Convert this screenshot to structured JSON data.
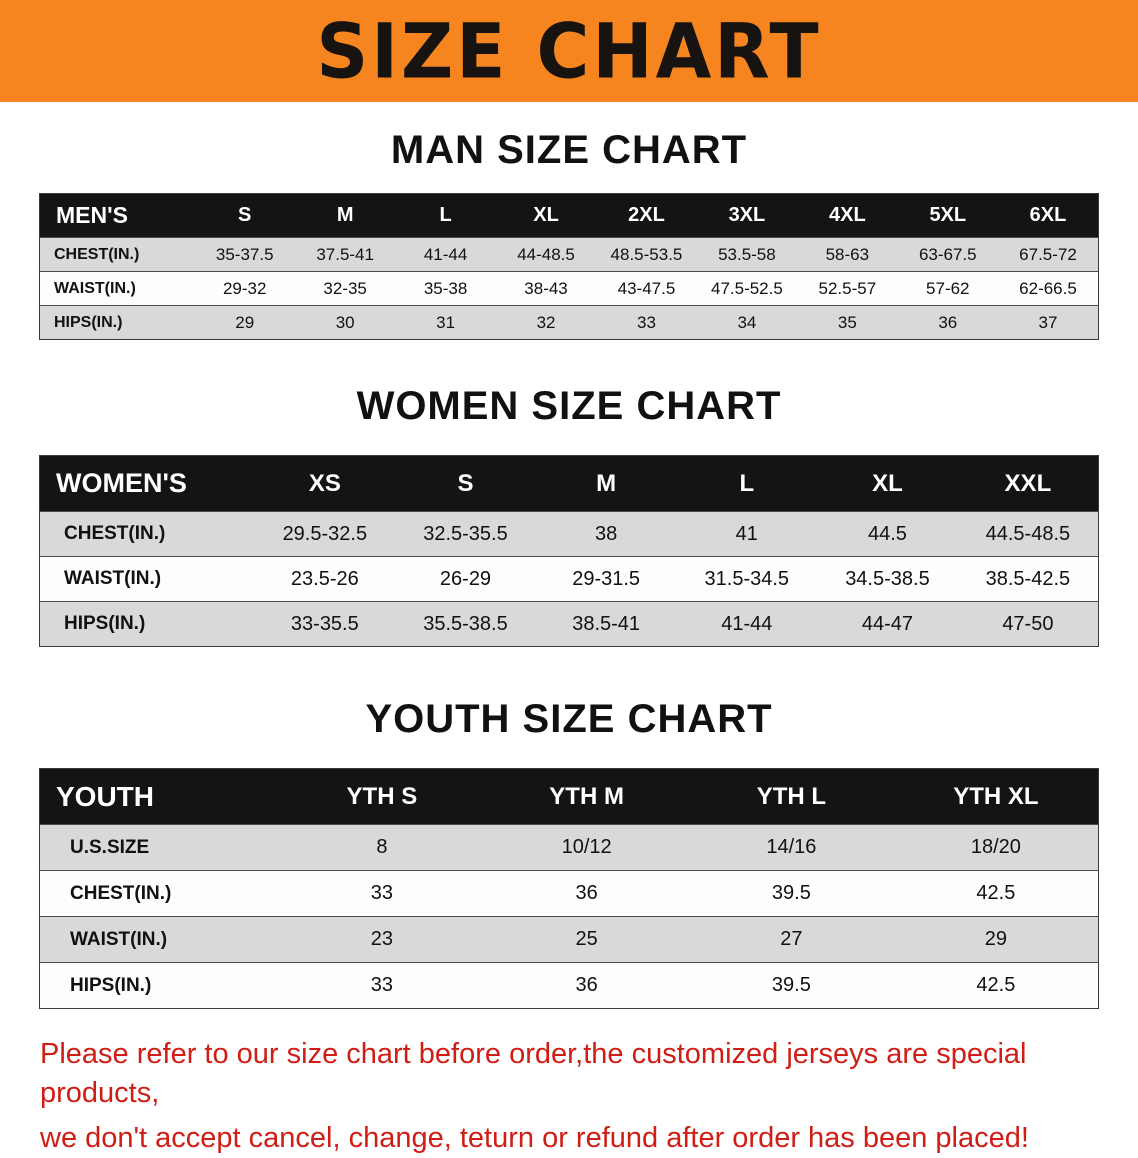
{
  "banner": {
    "title": "SIZE CHART"
  },
  "colors": {
    "banner_bg": "#f6851f",
    "table_header_bg": "#141414",
    "row_alt_bg": "#d9d9d9",
    "notice_text": "#d01d15"
  },
  "sections": [
    {
      "id": "men",
      "heading": "MAN SIZE CHART",
      "table": {
        "label": "MEN'S",
        "columns": [
          "S",
          "M",
          "L",
          "XL",
          "2XL",
          "3XL",
          "4XL",
          "5XL",
          "6XL"
        ],
        "rows": [
          {
            "label": "CHEST(IN.)",
            "values": [
              "35-37.5",
              "37.5-41",
              "41-44",
              "44-48.5",
              "48.5-53.5",
              "53.5-58",
              "58-63",
              "63-67.5",
              "67.5-72"
            ]
          },
          {
            "label": "WAIST(IN.)",
            "values": [
              "29-32",
              "32-35",
              "35-38",
              "38-43",
              "43-47.5",
              "47.5-52.5",
              "52.5-57",
              "57-62",
              "62-66.5"
            ]
          },
          {
            "label": "HIPS(IN.)",
            "values": [
              "29",
              "30",
              "31",
              "32",
              "33",
              "34",
              "35",
              "36",
              "37"
            ]
          }
        ]
      }
    },
    {
      "id": "women",
      "heading": "WOMEN SIZE CHART",
      "table": {
        "label": "WOMEN'S",
        "columns": [
          "XS",
          "S",
          "M",
          "L",
          "XL",
          "XXL"
        ],
        "rows": [
          {
            "label": "CHEST(IN.)",
            "values": [
              "29.5-32.5",
              "32.5-35.5",
              "38",
              "41",
              "44.5",
              "44.5-48.5"
            ]
          },
          {
            "label": "WAIST(IN.)",
            "values": [
              "23.5-26",
              "26-29",
              "29-31.5",
              "31.5-34.5",
              "34.5-38.5",
              "38.5-42.5"
            ]
          },
          {
            "label": "HIPS(IN.)",
            "values": [
              "33-35.5",
              "35.5-38.5",
              "38.5-41",
              "41-44",
              "44-47",
              "47-50"
            ]
          }
        ]
      }
    },
    {
      "id": "youth",
      "heading": "YOUTH SIZE CHART",
      "table": {
        "label": "YOUTH",
        "columns": [
          "YTH S",
          "YTH M",
          "YTH L",
          "YTH XL"
        ],
        "rows": [
          {
            "label": "U.S.SIZE",
            "values": [
              "8",
              "10/12",
              "14/16",
              "18/20"
            ]
          },
          {
            "label": "CHEST(IN.)",
            "values": [
              "33",
              "36",
              "39.5",
              "42.5"
            ]
          },
          {
            "label": "WAIST(IN.)",
            "values": [
              "23",
              "25",
              "27",
              "29"
            ]
          },
          {
            "label": "HIPS(IN.)",
            "values": [
              "33",
              "36",
              "39.5",
              "42.5"
            ]
          }
        ]
      }
    }
  ],
  "footer": {
    "line1": "Please refer to our size chart before order,the customized jerseys are special products,",
    "line2": "we don't accept cancel, change, teturn or refund after order has been placed!"
  }
}
